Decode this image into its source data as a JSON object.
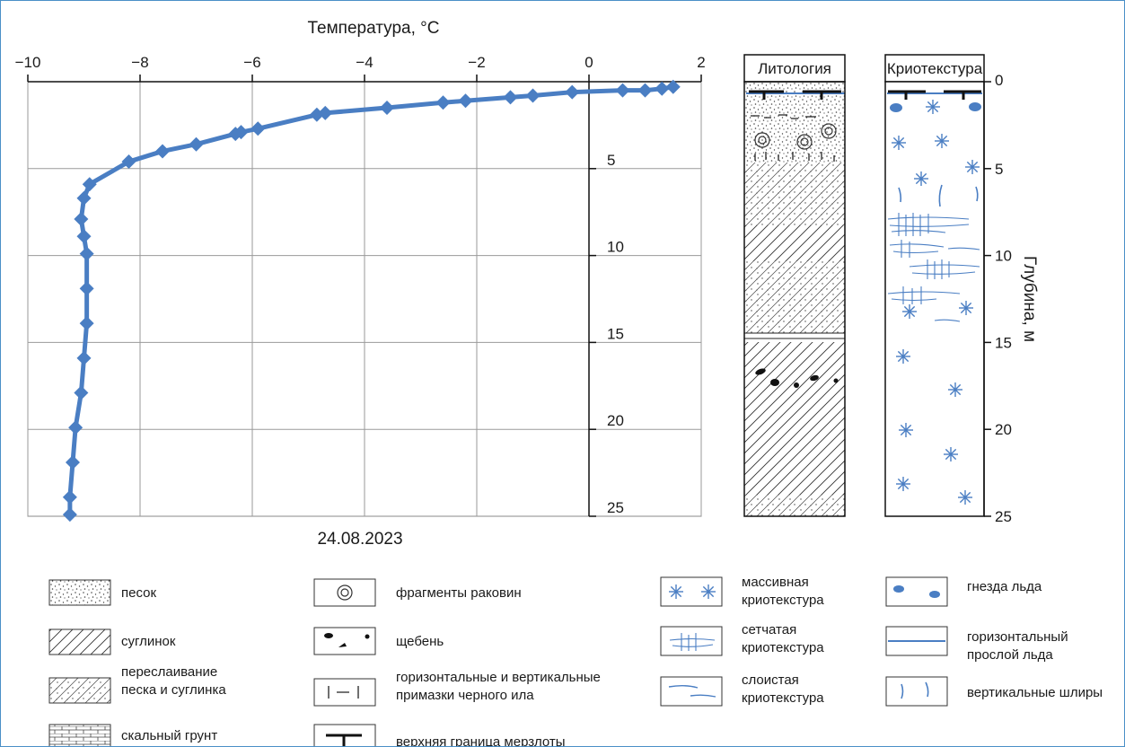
{
  "chart_data": {
    "type": "line",
    "title": "Температура, °C",
    "date_label": "24.08.2023",
    "xlabel": "Температура, °C",
    "ylabel": "Глубина, м",
    "xlim": [
      -10,
      2
    ],
    "ylim": [
      0,
      25
    ],
    "x_ticks": [
      "−10",
      "−8",
      "−6",
      "−4",
      "−2",
      "0",
      "2"
    ],
    "y_ticks": [
      "0",
      "5",
      "10",
      "15",
      "20",
      "25"
    ],
    "grid": true,
    "series_color": "#4a7ec3",
    "points": [
      [
        1.5,
        0.3
      ],
      [
        1.3,
        0.4
      ],
      [
        1.0,
        0.5
      ],
      [
        0.6,
        0.5
      ],
      [
        -0.3,
        0.6
      ],
      [
        -1.0,
        0.8
      ],
      [
        -1.4,
        0.9
      ],
      [
        -2.2,
        1.1
      ],
      [
        -2.6,
        1.2
      ],
      [
        -3.6,
        1.5
      ],
      [
        -4.7,
        1.8
      ],
      [
        -4.85,
        1.9
      ],
      [
        -5.9,
        2.7
      ],
      [
        -6.2,
        2.9
      ],
      [
        -6.3,
        3.0
      ],
      [
        -7.0,
        3.6
      ],
      [
        -7.6,
        4.0
      ],
      [
        -8.2,
        4.6
      ],
      [
        -8.9,
        5.9
      ],
      [
        -9.0,
        6.7
      ],
      [
        -9.05,
        7.9
      ],
      [
        -9.0,
        8.9
      ],
      [
        -8.95,
        9.9
      ],
      [
        -8.95,
        11.9
      ],
      [
        -8.95,
        13.9
      ],
      [
        -9.0,
        15.9
      ],
      [
        -9.05,
        17.9
      ],
      [
        -9.15,
        19.9
      ],
      [
        -9.2,
        21.9
      ],
      [
        -9.25,
        23.9
      ],
      [
        -9.25,
        24.9
      ]
    ]
  },
  "columns": {
    "lithology_title": "Литология",
    "cryotexture_title": "Криотекстура",
    "depth_ticks": [
      "0",
      "5",
      "10",
      "15",
      "20",
      "25"
    ],
    "depth_axis_label": "Глубина, м"
  },
  "legend": [
    {
      "key": "sand",
      "text": [
        "песок"
      ]
    },
    {
      "key": "loam",
      "text": [
        "суглинок"
      ]
    },
    {
      "key": "interbed",
      "text": [
        "переслаивание",
        "песка и суглинка"
      ]
    },
    {
      "key": "rock",
      "text": [
        "скальный грунт"
      ]
    },
    {
      "key": "shell",
      "text": [
        "фрагменты раковин"
      ]
    },
    {
      "key": "gravel",
      "text": [
        "щебень"
      ]
    },
    {
      "key": "silt",
      "text": [
        "горизонтальные и вертикальные",
        "примазки черного ила"
      ]
    },
    {
      "key": "permafrost",
      "text": [
        "верхняя граница мерзлоты"
      ]
    },
    {
      "key": "massive",
      "text": [
        "массивная",
        "криотекстура"
      ]
    },
    {
      "key": "reticulate",
      "text": [
        "сетчатая",
        "криотекстура"
      ]
    },
    {
      "key": "layered",
      "text": [
        "слоистая",
        "криотекстура"
      ]
    },
    {
      "key": "nests",
      "text": [
        "гнезда льда"
      ]
    },
    {
      "key": "ice_layer",
      "text": [
        "горизонтальный",
        "прослой льда"
      ]
    },
    {
      "key": "vertical_schlieren",
      "text": [
        "вертикальные шлиры"
      ]
    }
  ],
  "colors": {
    "accent": "#4a7ec3",
    "frame": "#4a8fc7"
  }
}
